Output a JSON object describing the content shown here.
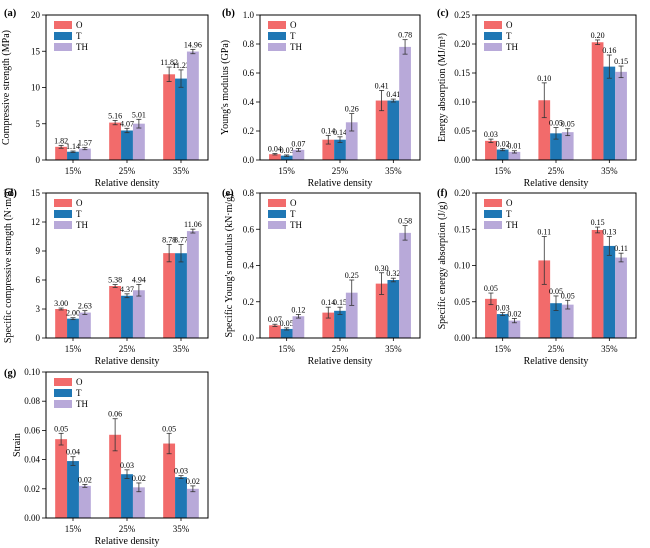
{
  "colors": {
    "O": "#f26b6b",
    "T": "#1f77b4",
    "TH": "#b8a9d9"
  },
  "chart_data": [
    {
      "type": "bar",
      "panel": "(a)",
      "categories": [
        "15%",
        "25%",
        "35%"
      ],
      "xlabel": "Relative density",
      "ylabel": "Compressive strength (MPa)",
      "ylim": [
        0,
        20
      ],
      "yticks": [
        0,
        5,
        10,
        15,
        20
      ],
      "series": [
        {
          "name": "O",
          "values": [
            1.82,
            5.16,
            11.82
          ],
          "errors": [
            0.2,
            0.3,
            1.0
          ],
          "labels": [
            "1.82",
            "5.16",
            "11.82"
          ]
        },
        {
          "name": "T",
          "values": [
            1.14,
            4.07,
            11.23
          ],
          "errors": [
            0.1,
            0.3,
            1.2
          ],
          "labels": [
            "1.14",
            "4.07",
            "11.23"
          ]
        },
        {
          "name": "TH",
          "values": [
            1.57,
            5.01,
            14.96
          ],
          "errors": [
            0.15,
            0.6,
            0.3
          ],
          "labels": [
            "1.57",
            "5.01",
            "14.96"
          ]
        }
      ]
    },
    {
      "type": "bar",
      "panel": "(b)",
      "categories": [
        "15%",
        "25%",
        "35%"
      ],
      "xlabel": "Relative density",
      "ylabel": "Young's modulus (GPa)",
      "ylim": [
        0,
        1.0
      ],
      "yticks": [
        0.0,
        0.2,
        0.4,
        0.6,
        0.8,
        1.0
      ],
      "series": [
        {
          "name": "O",
          "values": [
            0.04,
            0.14,
            0.41
          ],
          "errors": [
            0.005,
            0.03,
            0.07
          ],
          "labels": [
            "0.04",
            "0.14",
            "0.41"
          ]
        },
        {
          "name": "T",
          "values": [
            0.03,
            0.14,
            0.41
          ],
          "errors": [
            0.005,
            0.02,
            0.01
          ],
          "labels": [
            "0.03",
            "0.14",
            "0.41"
          ]
        },
        {
          "name": "TH",
          "values": [
            0.07,
            0.26,
            0.78
          ],
          "errors": [
            0.01,
            0.06,
            0.05
          ],
          "labels": [
            "0.07",
            "0.26",
            "0.78"
          ]
        }
      ]
    },
    {
      "type": "bar",
      "panel": "(c)",
      "categories": [
        "15%",
        "25%",
        "35%"
      ],
      "xlabel": "Relative density",
      "ylabel": "Energy absorption (MJ/m³)",
      "ylim": [
        0,
        0.25
      ],
      "yticks": [
        0.0,
        0.05,
        0.1,
        0.15,
        0.2,
        0.25
      ],
      "series": [
        {
          "name": "O",
          "values": [
            0.033,
            0.103,
            0.203
          ],
          "errors": [
            0.003,
            0.03,
            0.004
          ],
          "labels": [
            "0.03",
            "0.10",
            "0.20"
          ]
        },
        {
          "name": "T",
          "values": [
            0.018,
            0.046,
            0.161
          ],
          "errors": [
            0.002,
            0.01,
            0.02
          ],
          "labels": [
            "0.02",
            "0.05",
            "0.16"
          ]
        },
        {
          "name": "TH",
          "values": [
            0.014,
            0.048,
            0.152
          ],
          "errors": [
            0.002,
            0.006,
            0.01
          ],
          "labels": [
            "0.01",
            "0.05",
            "0.15"
          ]
        }
      ]
    },
    {
      "type": "bar",
      "panel": "(d)",
      "categories": [
        "15%",
        "25%",
        "35%"
      ],
      "xlabel": "Relative density",
      "ylabel": "Specific compressive strength (N·m/g)",
      "ylim": [
        0,
        15
      ],
      "yticks": [
        0,
        3,
        6,
        9,
        12,
        15
      ],
      "series": [
        {
          "name": "O",
          "values": [
            3.0,
            5.38,
            8.78
          ],
          "errors": [
            0.1,
            0.15,
            0.9
          ],
          "labels": [
            "3.00",
            "5.38",
            "8.78"
          ]
        },
        {
          "name": "T",
          "values": [
            2.0,
            4.37,
            8.77
          ],
          "errors": [
            0.1,
            0.2,
            0.9
          ],
          "labels": [
            "2.00",
            "4.37",
            "8.77"
          ]
        },
        {
          "name": "TH",
          "values": [
            2.63,
            4.94,
            11.06
          ],
          "errors": [
            0.2,
            0.6,
            0.2
          ],
          "labels": [
            "2.63",
            "4.94",
            "11.06"
          ]
        }
      ]
    },
    {
      "type": "bar",
      "panel": "(e)",
      "categories": [
        "15%",
        "25%",
        "35%"
      ],
      "xlabel": "Relative density",
      "ylabel": "Specific Young's modulus (kN·m/g)",
      "ylim": [
        0,
        0.8
      ],
      "yticks": [
        0.0,
        0.2,
        0.4,
        0.6,
        0.8
      ],
      "series": [
        {
          "name": "O",
          "values": [
            0.07,
            0.14,
            0.3
          ],
          "errors": [
            0.006,
            0.03,
            0.06
          ],
          "labels": [
            "0.07",
            "0.14",
            "0.30"
          ]
        },
        {
          "name": "T",
          "values": [
            0.05,
            0.15,
            0.32
          ],
          "errors": [
            0.006,
            0.02,
            0.01
          ],
          "labels": [
            "0.05",
            "0.15",
            "0.32"
          ]
        },
        {
          "name": "TH",
          "values": [
            0.12,
            0.25,
            0.58
          ],
          "errors": [
            0.01,
            0.07,
            0.04
          ],
          "labels": [
            "0.12",
            "0.25",
            "0.58"
          ]
        }
      ]
    },
    {
      "type": "bar",
      "panel": "(f)",
      "categories": [
        "15%",
        "25%",
        "35%"
      ],
      "xlabel": "Relative density",
      "ylabel": "Specific energy absorption (J/g)",
      "ylim": [
        0,
        0.2
      ],
      "yticks": [
        0.0,
        0.05,
        0.1,
        0.15,
        0.2
      ],
      "series": [
        {
          "name": "O",
          "values": [
            0.054,
            0.107,
            0.149
          ],
          "errors": [
            0.008,
            0.033,
            0.004
          ],
          "labels": [
            "0.05",
            "0.11",
            "0.15"
          ]
        },
        {
          "name": "T",
          "values": [
            0.033,
            0.048,
            0.127
          ],
          "errors": [
            0.002,
            0.01,
            0.013
          ],
          "labels": [
            "0.03",
            "0.05",
            "0.13"
          ]
        },
        {
          "name": "TH",
          "values": [
            0.024,
            0.046,
            0.111
          ],
          "errors": [
            0.003,
            0.006,
            0.006
          ],
          "labels": [
            "0.02",
            "0.05",
            "0.11"
          ]
        }
      ]
    },
    {
      "type": "bar",
      "panel": "(g)",
      "categories": [
        "15%",
        "25%",
        "35%"
      ],
      "xlabel": "Relative density",
      "ylabel": "Strain",
      "ylim": [
        0,
        0.1
      ],
      "yticks": [
        0.0,
        0.02,
        0.04,
        0.06,
        0.08,
        0.1
      ],
      "series": [
        {
          "name": "O",
          "values": [
            0.054,
            0.057,
            0.051
          ],
          "errors": [
            0.004,
            0.011,
            0.007
          ],
          "labels": [
            "0.05",
            "0.06",
            "0.05"
          ]
        },
        {
          "name": "T",
          "values": [
            0.039,
            0.03,
            0.028
          ],
          "errors": [
            0.003,
            0.003,
            0.001
          ],
          "labels": [
            "0.04",
            "0.03",
            "0.03"
          ]
        },
        {
          "name": "TH",
          "values": [
            0.022,
            0.021,
            0.02
          ],
          "errors": [
            0.001,
            0.003,
            0.002
          ],
          "labels": [
            "0.02",
            "0.02",
            "0.02"
          ]
        }
      ]
    }
  ]
}
